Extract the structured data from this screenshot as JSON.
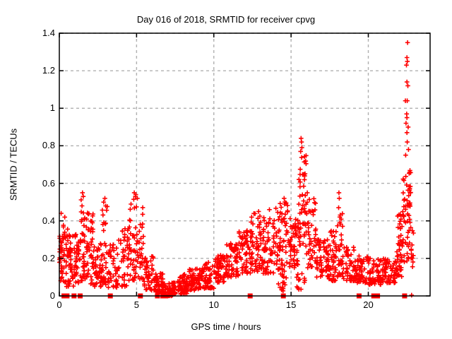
{
  "chart_data": {
    "type": "scatter",
    "title": "Day 016 of 2018, SRMTID for receiver cpvg",
    "xlabel": "GPS time / hours",
    "ylabel": "SRMTID / TECUs",
    "xlim": [
      0,
      24
    ],
    "ylim": [
      0,
      1.4
    ],
    "xticks": [
      {
        "v": 0,
        "label": "0"
      },
      {
        "v": 5,
        "label": "5"
      },
      {
        "v": 10,
        "label": "10"
      },
      {
        "v": 15,
        "label": "15"
      },
      {
        "v": 20,
        "label": "20"
      }
    ],
    "yticks": [
      {
        "v": 0,
        "label": "0"
      },
      {
        "v": 0.2,
        "label": "0.2"
      },
      {
        "v": 0.4,
        "label": "0.4"
      },
      {
        "v": 0.6,
        "label": "0.6"
      },
      {
        "v": 0.8,
        "label": "0.8"
      },
      {
        "v": 1,
        "label": "1"
      },
      {
        "v": 1.2,
        "label": "1.2"
      },
      {
        "v": 1.4,
        "label": "1.4"
      }
    ],
    "grid": true,
    "legend": "none",
    "marker": "plus-cross",
    "zero_marker": "filled-square",
    "colors": {
      "points": "#ff0000",
      "grid": "#b0b0b0",
      "axes": "#000000",
      "background": "#ffffff"
    },
    "seed": 20180116,
    "band_format": [
      "hour_start",
      "hour_end",
      "srmtid_min",
      "srmtid_max",
      "n_points"
    ],
    "density_bands": [
      [
        0.0,
        0.2,
        0.08,
        0.32,
        25
      ],
      [
        0.2,
        0.55,
        0.05,
        0.38,
        30
      ],
      [
        0.55,
        0.95,
        0.05,
        0.33,
        35
      ],
      [
        0.95,
        1.35,
        0.06,
        0.35,
        35
      ],
      [
        1.35,
        1.8,
        0.08,
        0.52,
        45
      ],
      [
        1.8,
        2.25,
        0.06,
        0.46,
        40
      ],
      [
        2.25,
        2.75,
        0.05,
        0.3,
        40
      ],
      [
        2.75,
        3.15,
        0.06,
        0.5,
        30
      ],
      [
        3.15,
        3.8,
        0.04,
        0.28,
        40
      ],
      [
        3.8,
        4.45,
        0.05,
        0.36,
        40
      ],
      [
        4.45,
        5.05,
        0.08,
        0.55,
        45
      ],
      [
        5.05,
        5.45,
        0.08,
        0.48,
        30
      ],
      [
        5.45,
        6.1,
        0.03,
        0.22,
        45
      ],
      [
        6.1,
        6.7,
        0.01,
        0.12,
        55
      ],
      [
        6.7,
        7.6,
        0.0,
        0.07,
        70
      ],
      [
        7.6,
        8.4,
        0.01,
        0.12,
        60
      ],
      [
        8.4,
        9.2,
        0.03,
        0.15,
        60
      ],
      [
        9.2,
        10.0,
        0.04,
        0.18,
        60
      ],
      [
        10.0,
        10.8,
        0.07,
        0.22,
        60
      ],
      [
        10.8,
        11.6,
        0.1,
        0.28,
        60
      ],
      [
        11.6,
        12.4,
        0.12,
        0.36,
        60
      ],
      [
        12.4,
        13.2,
        0.13,
        0.44,
        60
      ],
      [
        13.2,
        14.0,
        0.12,
        0.42,
        60
      ],
      [
        14.0,
        14.8,
        0.13,
        0.5,
        60
      ],
      [
        14.1,
        14.7,
        0.02,
        0.12,
        15
      ],
      [
        14.8,
        15.5,
        0.15,
        0.42,
        55
      ],
      [
        15.3,
        15.9,
        0.03,
        0.15,
        12
      ],
      [
        15.5,
        16.0,
        0.25,
        0.76,
        50
      ],
      [
        16.0,
        16.6,
        0.15,
        0.52,
        45
      ],
      [
        16.6,
        17.4,
        0.1,
        0.3,
        55
      ],
      [
        17.4,
        18.0,
        0.08,
        0.35,
        50
      ],
      [
        18.0,
        18.35,
        0.1,
        0.44,
        30
      ],
      [
        18.35,
        19.2,
        0.08,
        0.26,
        55
      ],
      [
        19.2,
        20.0,
        0.07,
        0.22,
        55
      ],
      [
        20.0,
        20.9,
        0.06,
        0.2,
        60
      ],
      [
        20.9,
        21.8,
        0.07,
        0.2,
        60
      ],
      [
        21.8,
        22.25,
        0.1,
        0.45,
        45
      ],
      [
        22.25,
        22.75,
        0.18,
        0.72,
        55
      ],
      [
        22.75,
        22.95,
        0.15,
        0.38,
        12
      ]
    ],
    "outlier_points": [
      [
        0.12,
        0.44
      ],
      [
        0.35,
        0.42
      ],
      [
        1.5,
        0.55
      ],
      [
        1.55,
        0.53
      ],
      [
        2.95,
        0.52
      ],
      [
        3.0,
        0.48
      ],
      [
        4.85,
        0.55
      ],
      [
        4.95,
        0.54
      ],
      [
        5.05,
        0.52
      ],
      [
        12.45,
        0.42
      ],
      [
        12.9,
        0.45
      ],
      [
        13.6,
        0.46
      ],
      [
        14.55,
        0.52
      ],
      [
        14.6,
        0.5
      ],
      [
        15.65,
        0.84
      ],
      [
        15.68,
        0.82
      ],
      [
        15.7,
        0.79
      ],
      [
        15.62,
        0.77
      ],
      [
        16.05,
        0.55
      ],
      [
        18.1,
        0.55
      ],
      [
        18.12,
        0.52
      ],
      [
        18.08,
        0.47
      ],
      [
        22.54,
        1.35
      ],
      [
        22.5,
        1.27
      ],
      [
        22.53,
        1.25
      ],
      [
        22.47,
        1.23
      ],
      [
        22.5,
        1.14
      ],
      [
        22.56,
        1.12
      ],
      [
        22.4,
        1.04
      ],
      [
        22.52,
        1.04
      ],
      [
        22.48,
        0.97
      ],
      [
        22.5,
        0.95
      ],
      [
        22.44,
        0.92
      ],
      [
        22.58,
        0.9
      ],
      [
        22.5,
        0.87
      ],
      [
        22.52,
        0.82
      ],
      [
        22.6,
        0.78
      ],
      [
        22.42,
        0.75
      ]
    ],
    "zero_gap_squares": [
      0.3,
      0.5,
      0.95,
      1.35,
      3.3,
      5.25,
      6.35,
      6.7,
      6.9,
      12.35,
      14.5,
      19.4,
      20.35,
      20.6,
      22.35
    ],
    "zero_cross_points": [
      22.8
    ]
  }
}
